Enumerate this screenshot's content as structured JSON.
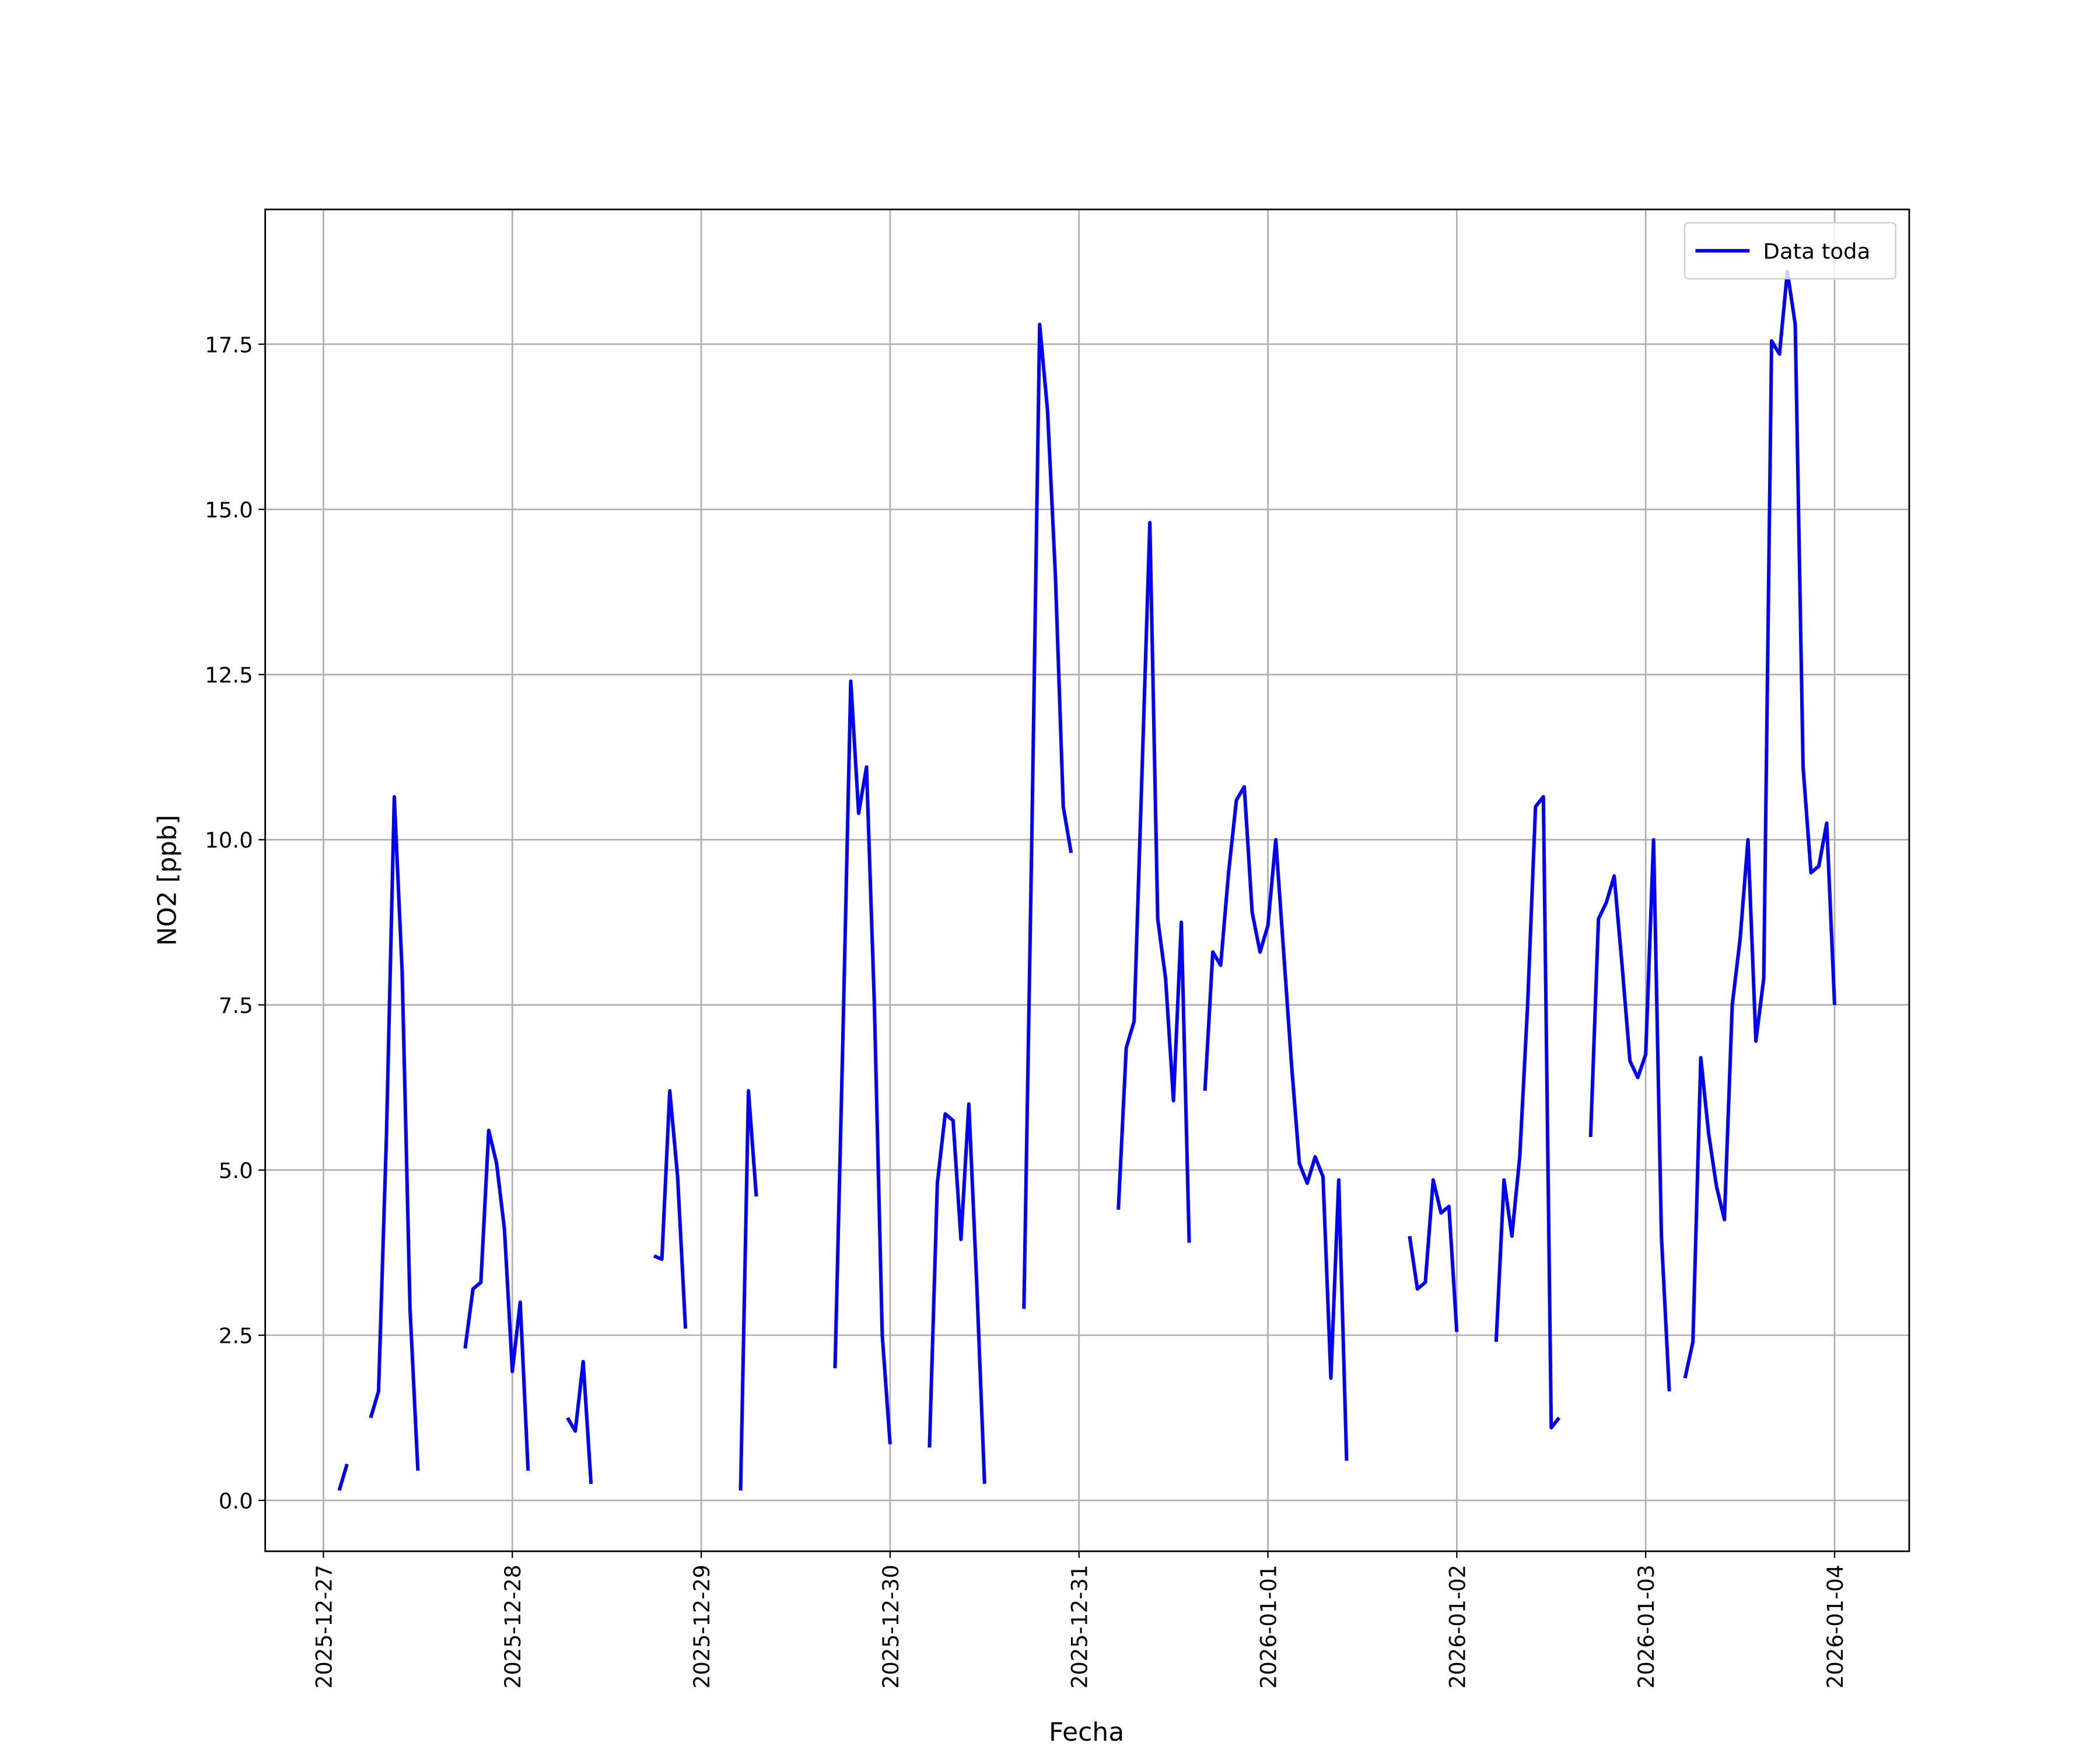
{
  "chart_data": {
    "type": "line",
    "xlabel": "Fecha",
    "ylabel": "NO2 [ppb]",
    "x": [
      "2025-12-27 02:00",
      "2025-12-27 03:00",
      "2025-12-27 04:00",
      "2025-12-27 05:00",
      "2025-12-27 06:00",
      "2025-12-27 07:00",
      "2025-12-27 08:00",
      "2025-12-27 09:00",
      "2025-12-27 10:00",
      "2025-12-27 11:00",
      "2025-12-27 12:00",
      "2025-12-27 13:00",
      "2025-12-27 14:00",
      "2025-12-27 15:00",
      "2025-12-27 16:00",
      "2025-12-27 17:00",
      "2025-12-27 18:00",
      "2025-12-27 19:00",
      "2025-12-27 20:00",
      "2025-12-27 21:00",
      "2025-12-27 22:00",
      "2025-12-27 23:00",
      "2025-12-28 00:00",
      "2025-12-28 01:00",
      "2025-12-28 02:00",
      "2025-12-28 03:00",
      "2025-12-28 04:00",
      "2025-12-28 05:00",
      "2025-12-28 06:00",
      "2025-12-28 07:00",
      "2025-12-28 08:00",
      "2025-12-28 09:00",
      "2025-12-28 10:00",
      "2025-12-28 11:00",
      "2025-12-28 12:00",
      "2025-12-28 13:00",
      "2025-12-28 14:00",
      "2025-12-28 15:00",
      "2025-12-28 16:00",
      "2025-12-28 17:00",
      "2025-12-28 18:00",
      "2025-12-28 19:00",
      "2025-12-28 20:00",
      "2025-12-28 21:00",
      "2025-12-28 22:00",
      "2025-12-28 23:00",
      "2025-12-29 00:00",
      "2025-12-29 01:00",
      "2025-12-29 02:00",
      "2025-12-29 03:00",
      "2025-12-29 04:00",
      "2025-12-29 05:00",
      "2025-12-29 06:00",
      "2025-12-29 07:00",
      "2025-12-29 08:00",
      "2025-12-29 09:00",
      "2025-12-29 10:00",
      "2025-12-29 11:00",
      "2025-12-29 12:00",
      "2025-12-29 13:00",
      "2025-12-29 14:00",
      "2025-12-29 15:00",
      "2025-12-29 16:00",
      "2025-12-29 17:00",
      "2025-12-29 18:00",
      "2025-12-29 19:00",
      "2025-12-29 20:00",
      "2025-12-29 21:00",
      "2025-12-29 22:00",
      "2025-12-29 23:00",
      "2025-12-30 00:00",
      "2025-12-30 01:00",
      "2025-12-30 02:00",
      "2025-12-30 03:00",
      "2025-12-30 04:00",
      "2025-12-30 05:00",
      "2025-12-30 06:00",
      "2025-12-30 07:00",
      "2025-12-30 08:00",
      "2025-12-30 09:00",
      "2025-12-30 10:00",
      "2025-12-30 11:00",
      "2025-12-30 12:00",
      "2025-12-30 13:00",
      "2025-12-30 14:00",
      "2025-12-30 15:00",
      "2025-12-30 16:00",
      "2025-12-30 17:00",
      "2025-12-30 18:00",
      "2025-12-30 19:00",
      "2025-12-30 20:00",
      "2025-12-30 21:00",
      "2025-12-30 22:00",
      "2025-12-30 23:00",
      "2025-12-31 00:00",
      "2025-12-31 01:00",
      "2025-12-31 02:00",
      "2025-12-31 03:00",
      "2025-12-31 04:00",
      "2025-12-31 05:00",
      "2025-12-31 06:00",
      "2025-12-31 07:00",
      "2025-12-31 08:00",
      "2025-12-31 09:00",
      "2025-12-31 10:00",
      "2025-12-31 11:00",
      "2025-12-31 12:00",
      "2025-12-31 13:00",
      "2025-12-31 14:00",
      "2025-12-31 15:00",
      "2025-12-31 16:00",
      "2025-12-31 17:00",
      "2025-12-31 18:00",
      "2025-12-31 19:00",
      "2025-12-31 20:00",
      "2025-12-31 21:00",
      "2025-12-31 22:00",
      "2025-12-31 23:00",
      "2026-01-01 00:00",
      "2026-01-01 01:00",
      "2026-01-01 02:00",
      "2026-01-01 03:00",
      "2026-01-01 04:00",
      "2026-01-01 05:00",
      "2026-01-01 06:00",
      "2026-01-01 07:00",
      "2026-01-01 08:00",
      "2026-01-01 09:00",
      "2026-01-01 10:00",
      "2026-01-01 11:00",
      "2026-01-01 12:00",
      "2026-01-01 13:00",
      "2026-01-01 14:00",
      "2026-01-01 15:00",
      "2026-01-01 16:00",
      "2026-01-01 17:00",
      "2026-01-01 18:00",
      "2026-01-01 19:00",
      "2026-01-01 20:00",
      "2026-01-01 21:00",
      "2026-01-01 22:00",
      "2026-01-01 23:00",
      "2026-01-02 00:00",
      "2026-01-02 01:00",
      "2026-01-02 02:00",
      "2026-01-02 03:00",
      "2026-01-02 04:00",
      "2026-01-02 05:00",
      "2026-01-02 06:00",
      "2026-01-02 07:00",
      "2026-01-02 08:00",
      "2026-01-02 09:00",
      "2026-01-02 10:00",
      "2026-01-02 11:00",
      "2026-01-02 12:00",
      "2026-01-02 13:00",
      "2026-01-02 14:00",
      "2026-01-02 15:00",
      "2026-01-02 16:00",
      "2026-01-02 17:00",
      "2026-01-02 18:00",
      "2026-01-02 19:00",
      "2026-01-02 20:00",
      "2026-01-02 21:00",
      "2026-01-02 22:00",
      "2026-01-02 23:00",
      "2026-01-03 00:00",
      "2026-01-03 01:00",
      "2026-01-03 02:00",
      "2026-01-03 03:00",
      "2026-01-03 04:00",
      "2026-01-03 05:00",
      "2026-01-03 06:00",
      "2026-01-03 07:00",
      "2026-01-03 08:00",
      "2026-01-03 09:00",
      "2026-01-03 10:00",
      "2026-01-03 11:00",
      "2026-01-03 12:00",
      "2026-01-03 13:00",
      "2026-01-03 14:00",
      "2026-01-03 15:00",
      "2026-01-03 16:00",
      "2026-01-03 17:00",
      "2026-01-03 18:00",
      "2026-01-03 19:00",
      "2026-01-03 20:00",
      "2026-01-03 21:00",
      "2026-01-03 22:00",
      "2026-01-03 23:00",
      "2026-01-04 00:00"
    ],
    "series": [
      {
        "name": "Data toda",
        "color": "#0000ff",
        "values": [
          0.15,
          0.55,
          null,
          null,
          1.25,
          1.65,
          5.5,
          10.65,
          8.0,
          2.9,
          0.45,
          null,
          null,
          null,
          null,
          null,
          2.3,
          3.2,
          3.3,
          5.6,
          5.1,
          4.1,
          1.95,
          3.0,
          0.45,
          null,
          null,
          null,
          null,
          1.25,
          1.05,
          2.1,
          0.25,
          null,
          null,
          null,
          null,
          null,
          null,
          null,
          3.7,
          3.65,
          6.2,
          4.9,
          2.6,
          null,
          null,
          null,
          null,
          null,
          null,
          0.15,
          6.2,
          4.6,
          null,
          null,
          null,
          null,
          null,
          null,
          null,
          null,
          null,
          2.0,
          7.0,
          12.4,
          10.4,
          11.1,
          7.5,
          2.5,
          0.85,
          null,
          null,
          null,
          null,
          0.8,
          4.8,
          5.85,
          5.75,
          3.95,
          6.0,
          3.3,
          0.25,
          null,
          null,
          null,
          null,
          2.9,
          10.0,
          17.8,
          16.5,
          14.0,
          10.5,
          9.8,
          null,
          null,
          null,
          null,
          null,
          4.4,
          6.85,
          7.25,
          11.0,
          14.8,
          8.8,
          7.9,
          6.05,
          8.75,
          3.9,
          null,
          6.2,
          8.3,
          8.1,
          9.5,
          10.6,
          10.8,
          8.9,
          8.3,
          8.7,
          10.0,
          8.3,
          6.6,
          5.1,
          4.8,
          5.2,
          4.9,
          1.85,
          4.85,
          0.6,
          null,
          null,
          null,
          null,
          null,
          null,
          null,
          4.0,
          3.2,
          3.3,
          4.85,
          4.35,
          4.45,
          2.55,
          null,
          null,
          null,
          null,
          2.4,
          4.85,
          4.0,
          5.2,
          7.5,
          10.5,
          10.65,
          1.1,
          1.25,
          null,
          null,
          null,
          5.5,
          8.8,
          9.05,
          9.45,
          8.1,
          6.65,
          6.4,
          6.75,
          10.0,
          4.0,
          1.65,
          null,
          1.85,
          2.4,
          6.7,
          5.55,
          4.75,
          4.25,
          7.5,
          8.5,
          10.0,
          6.95,
          7.9,
          17.55,
          17.35,
          18.6,
          17.8,
          11.1,
          9.5,
          9.6,
          10.25,
          7.5
        ]
      }
    ],
    "xlim": [
      "2025-12-26 16:36",
      "2026-01-04 09:29"
    ],
    "xticks": [
      "2025-12-27",
      "2025-12-28",
      "2025-12-29",
      "2025-12-30",
      "2025-12-31",
      "2026-01-01",
      "2026-01-02",
      "2026-01-03",
      "2026-01-04"
    ],
    "ylim": [
      -0.77,
      19.54
    ],
    "yticks": [
      {
        "value": 0,
        "label": "0.0"
      },
      {
        "value": 2.5,
        "label": "2.5"
      },
      {
        "value": 5,
        "label": "5.0"
      },
      {
        "value": 7.5,
        "label": "7.5"
      },
      {
        "value": 10,
        "label": "10.0"
      },
      {
        "value": 12.5,
        "label": "12.5"
      },
      {
        "value": 15,
        "label": "15.0"
      },
      {
        "value": 17.5,
        "label": "17.5"
      }
    ],
    "grid": true,
    "legend": "upper right"
  }
}
